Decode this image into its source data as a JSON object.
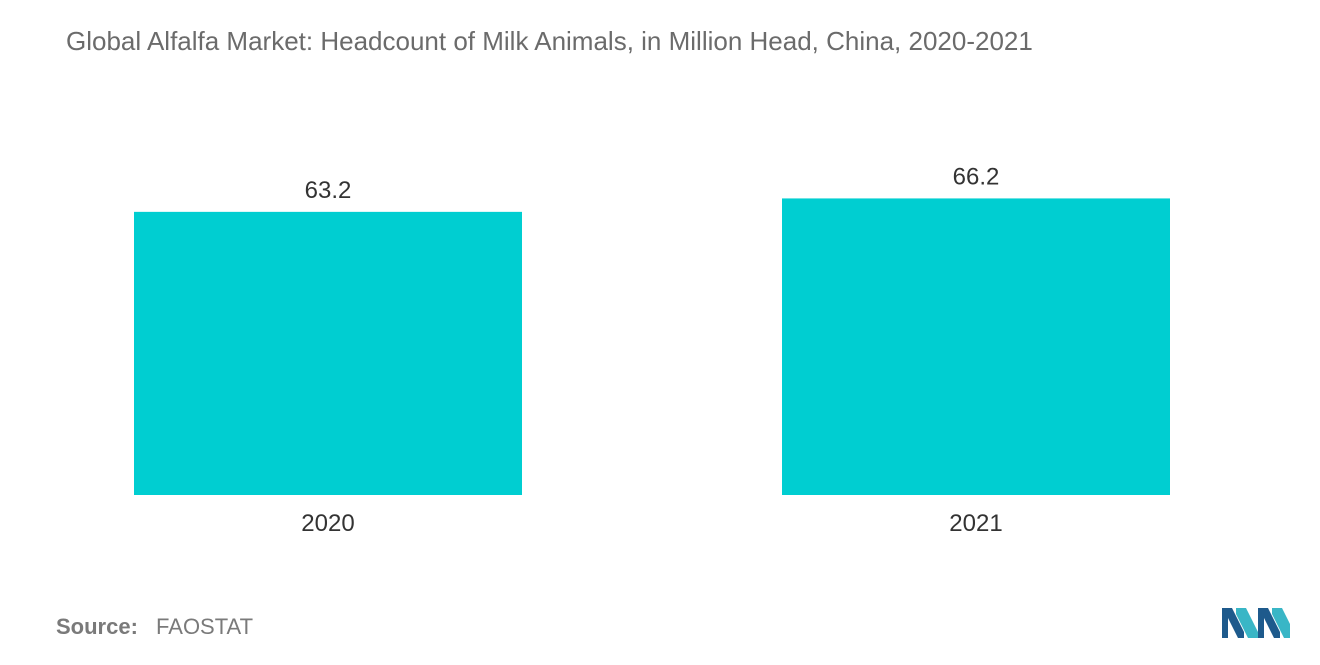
{
  "chart_data": {
    "type": "bar",
    "title": "Global Alfalfa Market: Headcount of Milk Animals, in Million Head, China, 2020-2021",
    "categories": [
      "2020",
      "2021"
    ],
    "values": [
      63.2,
      66.2
    ],
    "xlabel": "",
    "ylabel": "",
    "ylim": [
      0,
      70
    ],
    "grid": false,
    "bar_color": "#00CED1"
  },
  "source": {
    "label": "Source:",
    "value": "FAOSTAT"
  },
  "colors": {
    "title": "#6b6b6b",
    "text": "#333333",
    "logo_dark": "#1e5a8c",
    "logo_light": "#39b6c6"
  }
}
